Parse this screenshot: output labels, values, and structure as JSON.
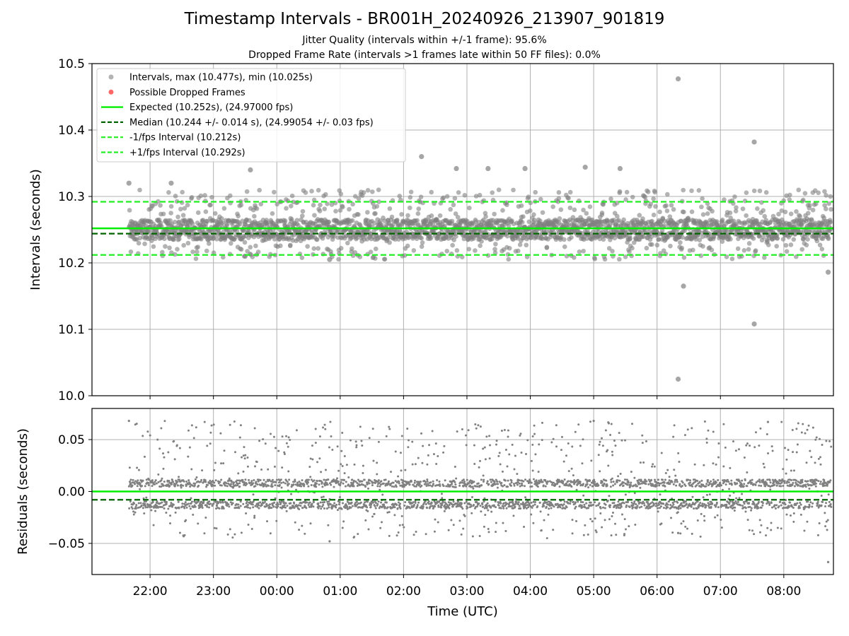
{
  "figure": {
    "title": "Timestamp Intervals - BR001H_20240926_213907_901819",
    "subtitle_1": "Jitter Quality (intervals within +/-1 frame): 95.6%",
    "subtitle_2": "Dropped Frame Rate (intervals >1 frames late within 50 FF files): 0.0%"
  },
  "colors": {
    "points": "#808080",
    "dropped": "#ff6666",
    "expected": "#00ee00",
    "median": "#006400",
    "bound": "#22ee22",
    "grid": "#b0b0b0"
  },
  "chart_data": [
    {
      "type": "scatter",
      "ylabel": "Intervals (seconds)",
      "ylim": [
        10.0,
        10.5
      ],
      "yticks": [
        "10.0",
        "10.1",
        "10.2",
        "10.3",
        "10.4",
        "10.5"
      ],
      "grid": true,
      "legend_position": "top-left",
      "legend": [
        "Intervals, max (10.477s), min (10.025s)",
        "Possible Dropped Frames",
        "Expected (10.252s), (24.97000 fps)",
        "Median (10.244 +/- 0.014 s), (24.99054 +/- 0.03 fps)",
        "-1/fps Interval (10.212s)",
        "+1/fps Interval (10.292s)"
      ],
      "series": [
        {
          "name": "Intervals, max (10.477s), min (10.025s)",
          "kind": "points",
          "x_range": [
            "21:40",
            "08:45"
          ],
          "dense_band": [
            10.235,
            10.265
          ],
          "spread": [
            10.205,
            10.31
          ]
        },
        {
          "name": "Possible Dropped Frames",
          "kind": "points",
          "values": []
        },
        {
          "name": "Expected (10.252s), (24.97000 fps)",
          "kind": "hline",
          "y": 10.252
        },
        {
          "name": "Median (10.244 +/- 0.014 s), (24.99054 +/- 0.03 fps)",
          "kind": "hline",
          "y": 10.244
        },
        {
          "name": "-1/fps Interval (10.212s)",
          "kind": "hline",
          "y": 10.212
        },
        {
          "name": "+1/fps Interval (10.292s)",
          "kind": "hline",
          "y": 10.292
        }
      ],
      "outliers": [
        {
          "x": "21:40",
          "y": 10.32
        },
        {
          "x": "22:20",
          "y": 10.32
        },
        {
          "x": "23:35",
          "y": 10.34
        },
        {
          "x": "02:17",
          "y": 10.36
        },
        {
          "x": "02:50",
          "y": 10.342
        },
        {
          "x": "03:20",
          "y": 10.342
        },
        {
          "x": "03:55",
          "y": 10.342
        },
        {
          "x": "04:52",
          "y": 10.344
        },
        {
          "x": "05:25",
          "y": 10.342
        },
        {
          "x": "06:20",
          "y": 10.477
        },
        {
          "x": "06:25",
          "y": 10.165
        },
        {
          "x": "06:20",
          "y": 10.025
        },
        {
          "x": "07:32",
          "y": 10.382
        },
        {
          "x": "07:32",
          "y": 10.108
        },
        {
          "x": "08:42",
          "y": 10.186
        },
        {
          "x": "00:50",
          "y": 10.205
        },
        {
          "x": "23:30",
          "y": 10.21
        }
      ]
    },
    {
      "type": "scatter",
      "ylabel": "Residuals (seconds)",
      "xlabel": "Time (UTC)",
      "ylim": [
        -0.08,
        0.08
      ],
      "yticks": [
        "0.05",
        "0.00",
        "−0.05"
      ],
      "ytick_values": [
        0.05,
        0.0,
        -0.05
      ],
      "xticks": [
        "22:00",
        "23:00",
        "00:00",
        "01:00",
        "02:00",
        "03:00",
        "04:00",
        "05:00",
        "06:00",
        "07:00",
        "08:00"
      ],
      "xlim": [
        "21:05",
        "08:47"
      ],
      "grid": true,
      "series": [
        {
          "name": "Residuals",
          "kind": "points",
          "x_range": [
            "21:40",
            "08:45"
          ],
          "bands": [
            0.008,
            -0.013
          ],
          "spread": [
            -0.045,
            0.068
          ]
        },
        {
          "name": "Expected",
          "kind": "hline",
          "y": 0.0
        },
        {
          "name": "Median",
          "kind": "hline",
          "y": -0.008
        }
      ],
      "outliers": [
        {
          "x": "06:20",
          "y": -0.04
        },
        {
          "x": "08:42",
          "y": -0.068
        },
        {
          "x": "21:40",
          "y": 0.068
        },
        {
          "x": "05:00",
          "y": 0.068
        },
        {
          "x": "07:45",
          "y": 0.067
        },
        {
          "x": "00:50",
          "y": -0.048
        }
      ]
    }
  ]
}
